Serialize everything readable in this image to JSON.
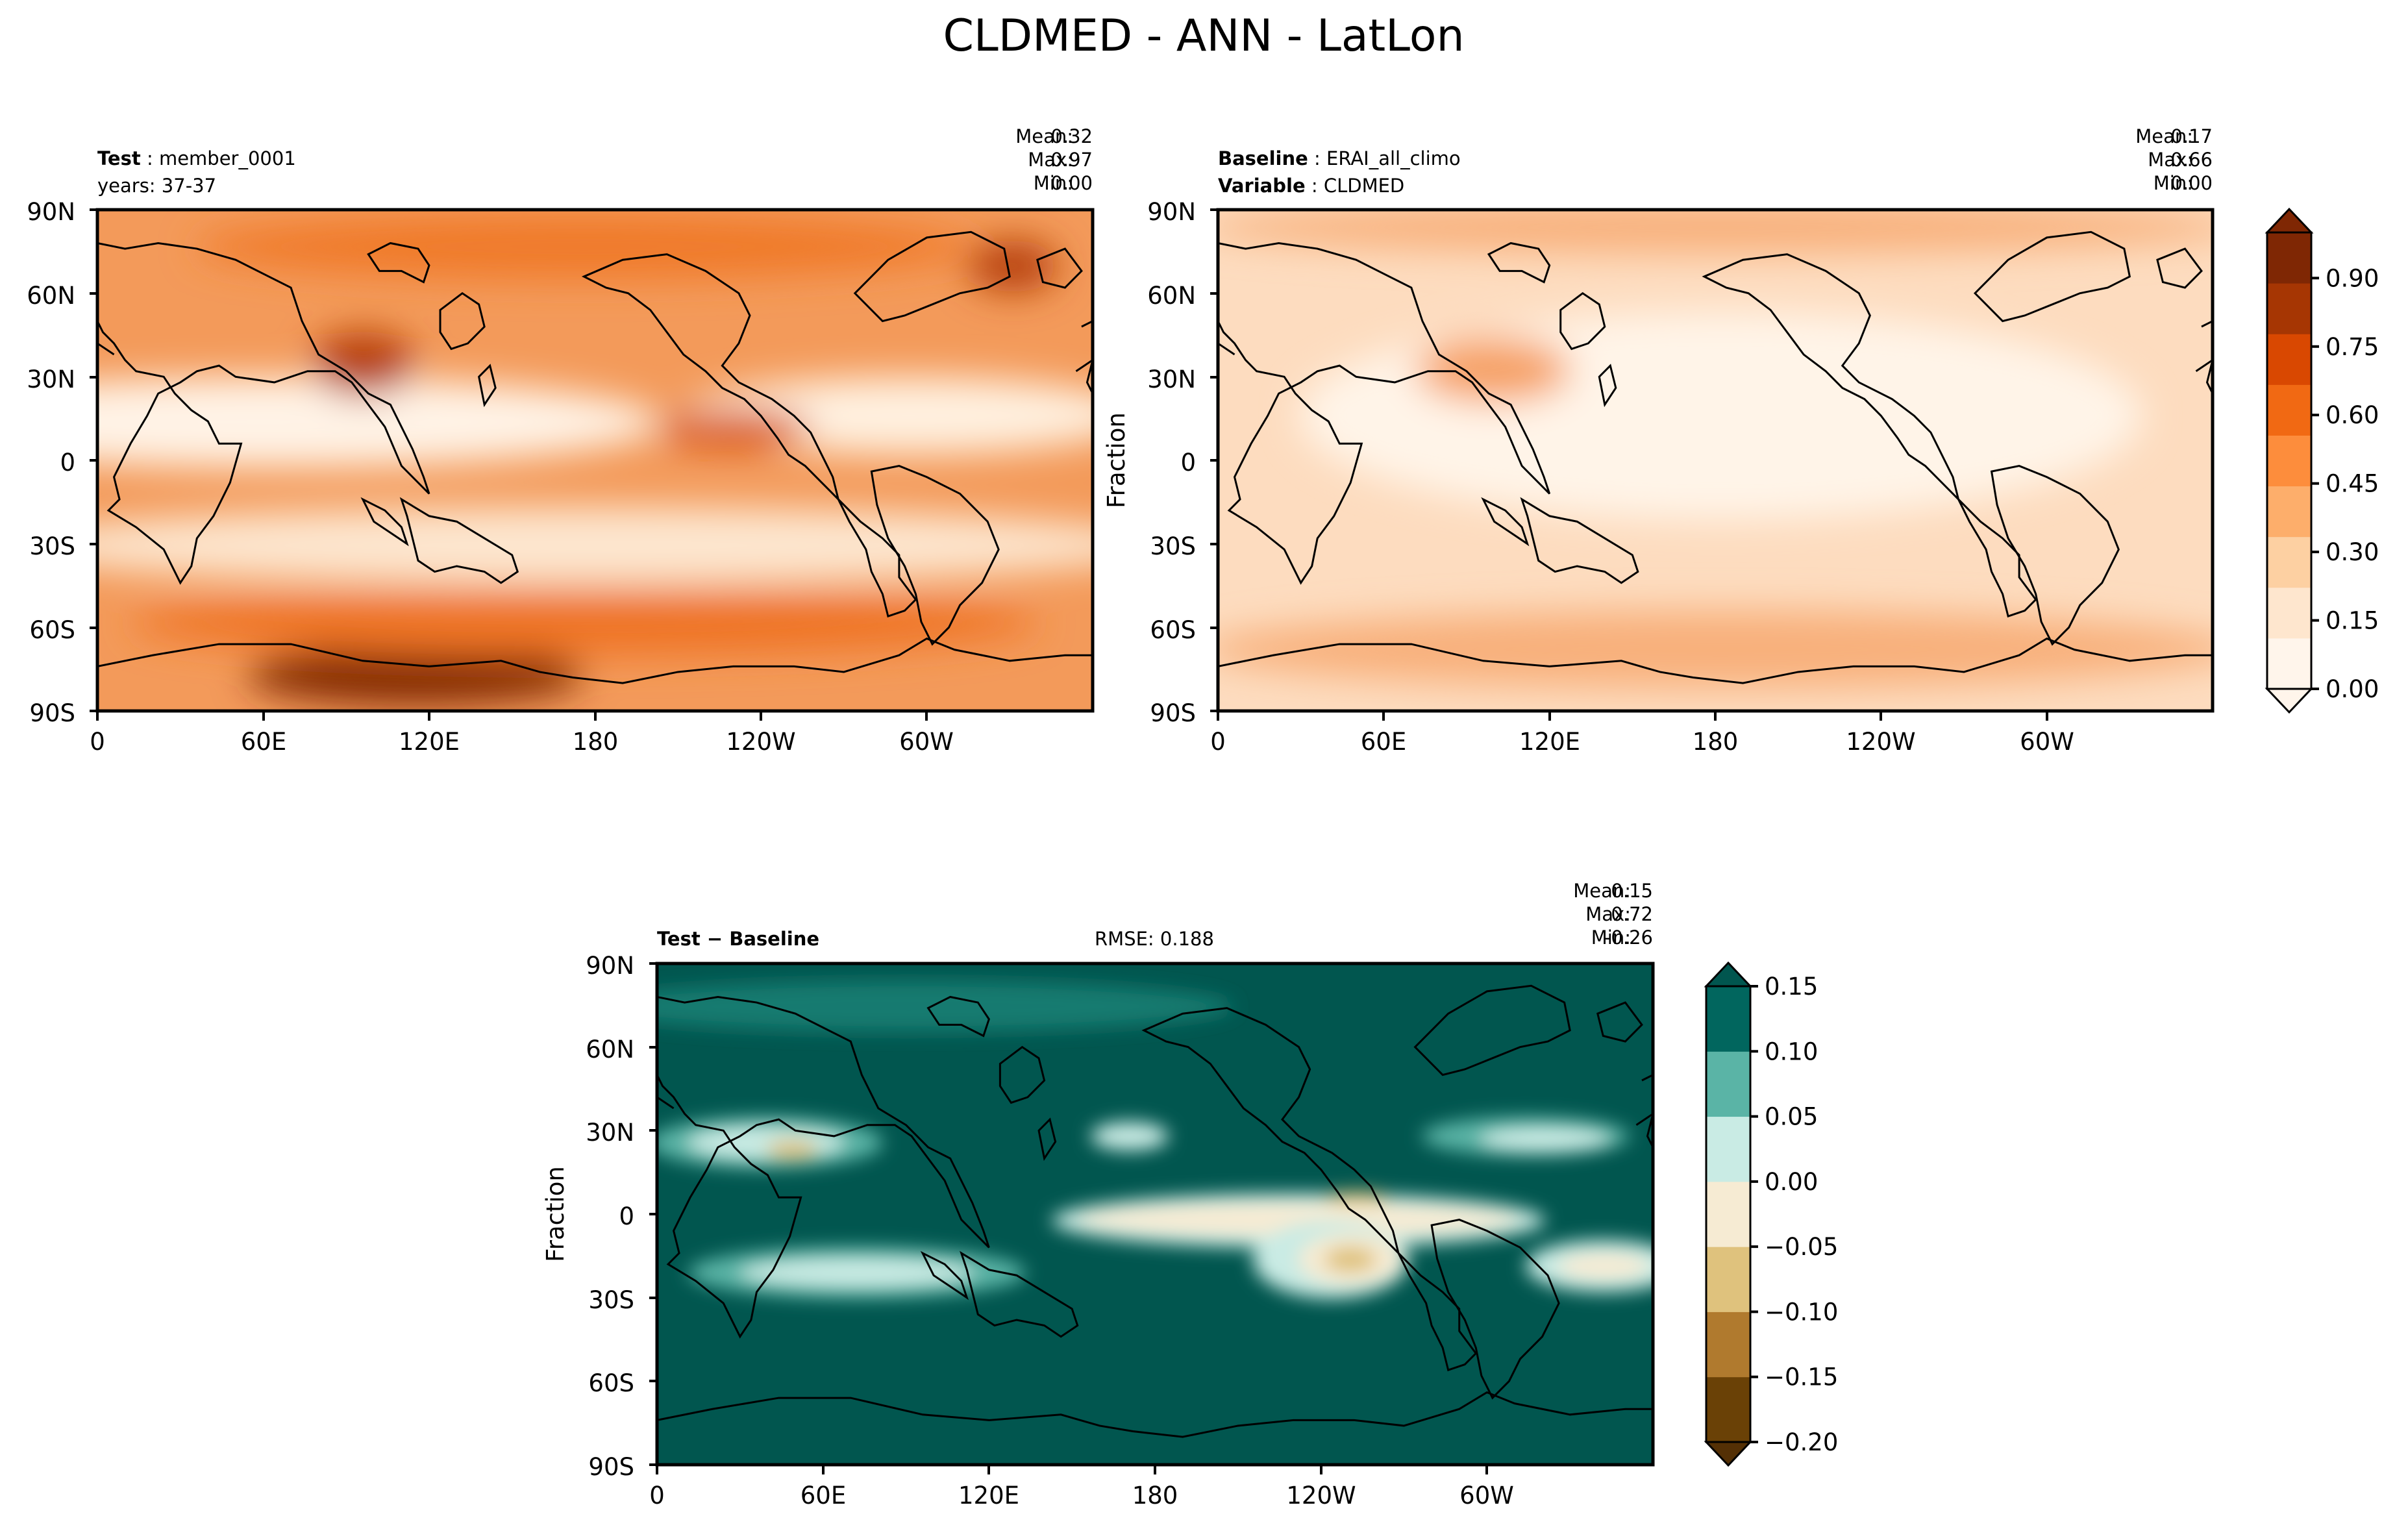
{
  "figure": {
    "title": "CLDMED - ANN - LatLon"
  },
  "axes": {
    "lat_ticks": [
      "90N",
      "60N",
      "30N",
      "0",
      "30S",
      "60S",
      "90S"
    ],
    "lon_ticks": [
      "0",
      "60E",
      "120E",
      "180",
      "120W",
      "60W"
    ],
    "ylabel": "Fraction"
  },
  "panels": {
    "test": {
      "label_bold": "Test",
      "label_value": "member_0001",
      "label_line2": "years: 37-37",
      "stats": {
        "mean_label": "Mean:",
        "mean": "0.32",
        "max_label": "Max:",
        "max": "0.97",
        "min_label": "Min:",
        "min": "0.00"
      }
    },
    "baseline": {
      "label_bold": "Baseline",
      "label_value": "ERAI_all_climo",
      "label2_bold": "Variable",
      "label2_value": "CLDMED",
      "stats": {
        "mean_label": "Mean:",
        "mean": "0.17",
        "max_label": "Max:",
        "max": "0.66",
        "min_label": "Min:",
        "min": "0.00"
      }
    },
    "diff": {
      "label": "Test − Baseline",
      "rmse": "RMSE: 0.188",
      "stats": {
        "mean_label": "Mean:",
        "mean": "0.15",
        "max_label": "Max:",
        "max": "0.72",
        "min_label": "Min:",
        "min": "-0.26"
      }
    }
  },
  "colorbars": {
    "orange": {
      "ticks": [
        "0.00",
        "0.15",
        "0.30",
        "0.45",
        "0.60",
        "0.75",
        "0.90"
      ],
      "tick_values": [
        0,
        0.15,
        0.3,
        0.45,
        0.6,
        0.75,
        0.9
      ],
      "range": [
        0,
        1.0
      ],
      "colors": [
        "#fff5eb",
        "#fee6ce",
        "#fdd0a2",
        "#fdae6b",
        "#fd8d3c",
        "#f16913",
        "#d94801",
        "#a63603",
        "#7f2704"
      ]
    },
    "diff": {
      "ticks": [
        "0.15",
        "0.10",
        "0.05",
        "0.00",
        "−0.05",
        "−0.10",
        "−0.15",
        "−0.20"
      ],
      "tick_values": [
        0.15,
        0.1,
        0.05,
        0.0,
        -0.05,
        -0.1,
        -0.15,
        -0.2
      ],
      "range": [
        -0.2,
        0.15
      ],
      "colors": [
        "#6a4106",
        "#b07a2e",
        "#dfc27d",
        "#f6ebd3",
        "#c9ebe4",
        "#5ab4a6",
        "#01665e"
      ]
    }
  },
  "colors": {
    "test_base": "#f39a5a",
    "baseline_base": "#fddcbf",
    "diff_base": "#01564f",
    "coast": "#000000"
  }
}
